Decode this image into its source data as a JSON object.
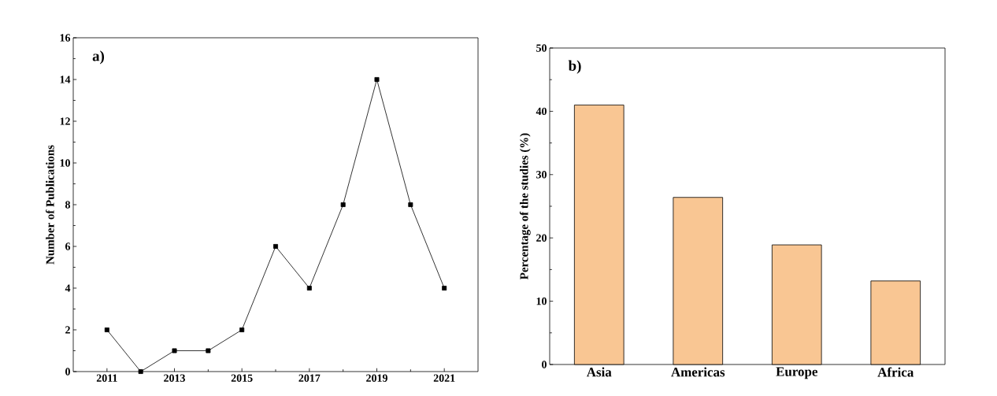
{
  "chart_data": [
    {
      "type": "line",
      "x": [
        2011,
        2012,
        2013,
        2014,
        2015,
        2016,
        2017,
        2018,
        2019,
        2020,
        2021
      ],
      "values": [
        2,
        0,
        1,
        1,
        2,
        6,
        4,
        8,
        14,
        8,
        4
      ],
      "color": "#000000",
      "marker": "square",
      "line_style": "solid",
      "xlim": [
        2010,
        2022
      ],
      "ylim": [
        0,
        16
      ],
      "xticks": [
        2011,
        2013,
        2015,
        2017,
        2019,
        2021
      ],
      "yticks": [
        0,
        2,
        4,
        6,
        8,
        10,
        12,
        14,
        16
      ],
      "ylabel": "Number of Publications",
      "annotations": [
        "a)"
      ]
    },
    {
      "type": "bar",
      "categories": [
        "Asia",
        "Americas",
        "Europe",
        "Africa"
      ],
      "values": [
        41.0,
        26.4,
        18.9,
        13.2
      ],
      "color": "#f9c693",
      "ylim": [
        0,
        50
      ],
      "yticks": [
        0,
        10,
        20,
        30,
        40,
        50
      ],
      "ylabel": "Percentage of the studies (%)",
      "annotations": [
        "b)"
      ]
    }
  ]
}
